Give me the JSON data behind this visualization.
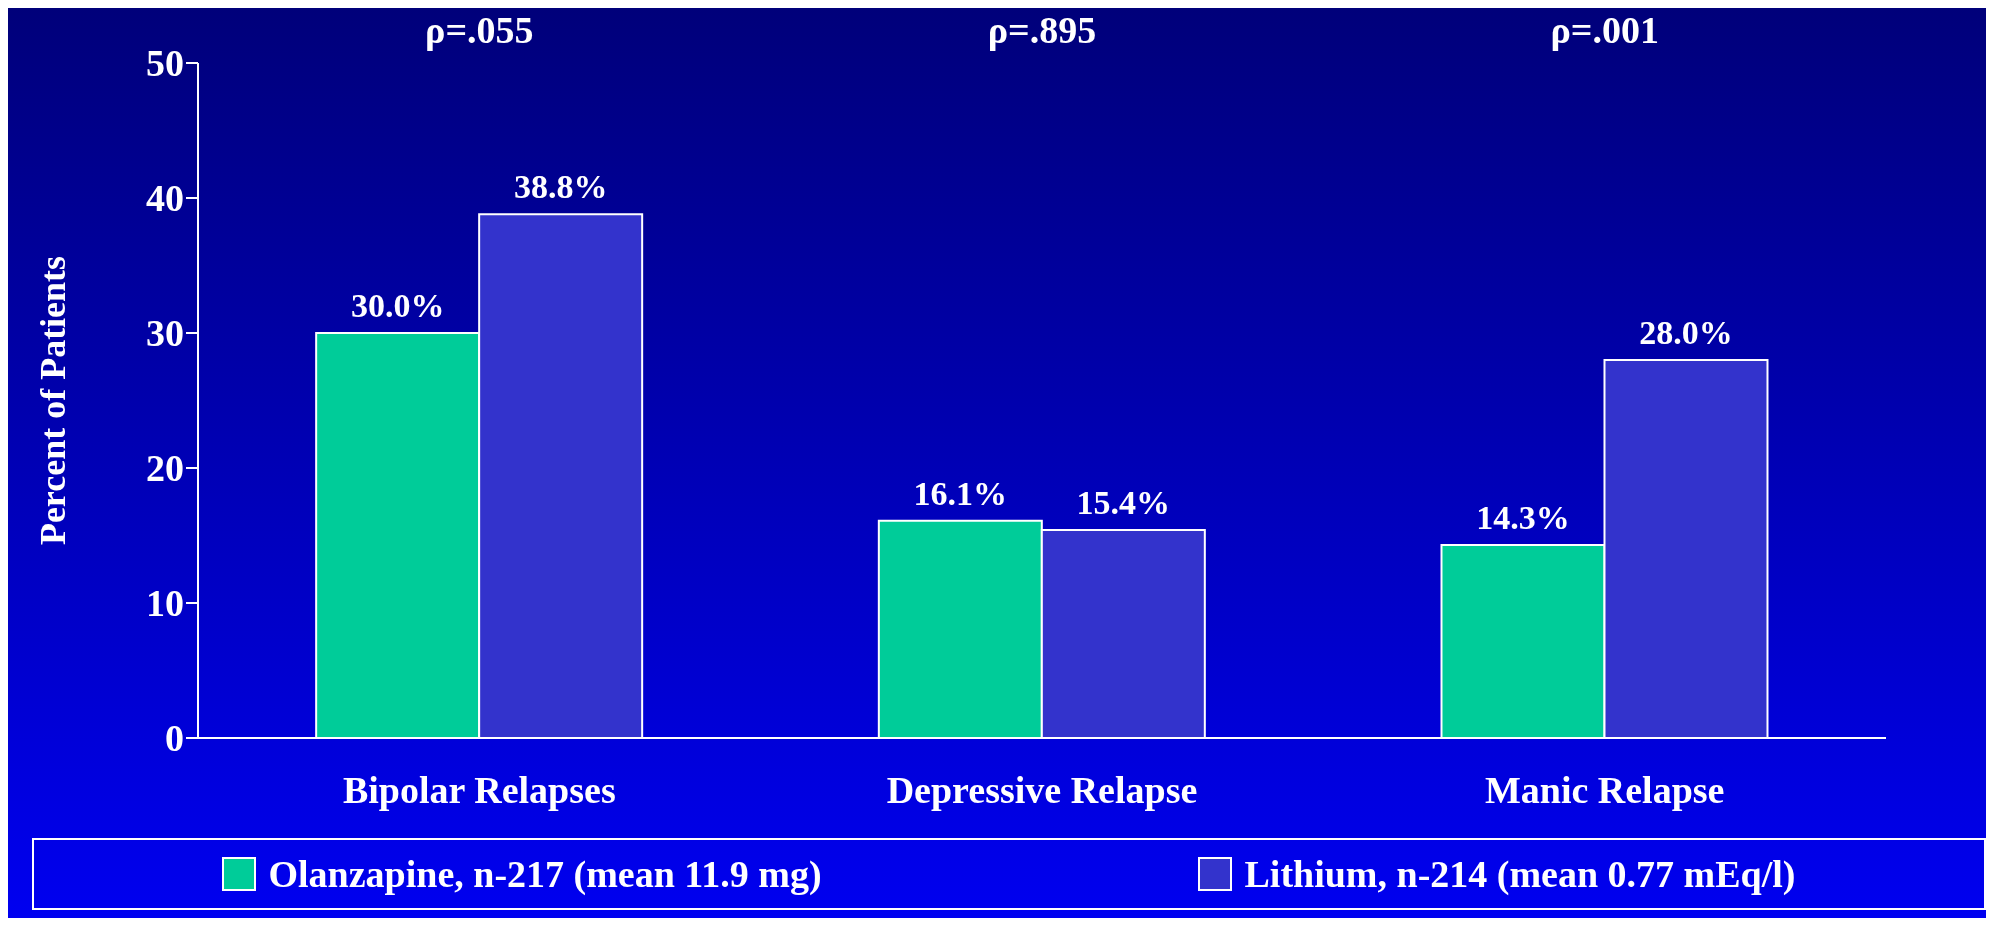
{
  "chart_data": {
    "type": "bar",
    "ylabel": "Percent of Patients",
    "categories": [
      "Bipolar Relapses",
      "Depressive Relapse",
      "Manic Relapse"
    ],
    "series": [
      {
        "name": "Olanzapine, n-217 (mean 11.9 mg)",
        "color": "#00cc99",
        "values": [
          30.0,
          16.1,
          14.3
        ],
        "value_labels": [
          "30.0%",
          "16.1%",
          "14.3%"
        ]
      },
      {
        "name": "Lithium, n-214 (mean 0.77 mEq/l)",
        "color": "#3333cc",
        "values": [
          38.8,
          15.4,
          28.0
        ],
        "value_labels": [
          "38.8%",
          "15.4%",
          "28.0%"
        ]
      }
    ],
    "ylim": [
      0,
      50
    ],
    "yticks": [
      0,
      10,
      20,
      30,
      40,
      50
    ],
    "grid": false,
    "legend": "bottom",
    "annotations": [
      "ρ=.055",
      "ρ=.895",
      "ρ=.001"
    ]
  }
}
